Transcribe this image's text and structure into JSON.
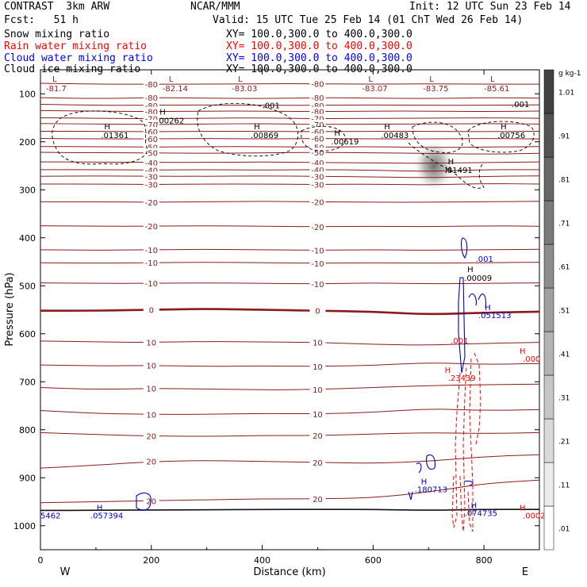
{
  "header": {
    "model": "CONTRAST  3km ARW",
    "org": "NCAR/MMM",
    "init": "Init: 12 UTC Sun 23 Feb 14",
    "fcst": "Fcst:   51 h",
    "valid": "Valid: 15 UTC Tue 25 Feb 14 (01 ChT Wed 26 Feb 14)",
    "fields": [
      {
        "name": "Snow mixing ratio",
        "xy": "XY= 100.0,300.0 to 400.0,300.0",
        "color": "#000000"
      },
      {
        "name": "Rain water mixing ratio",
        "xy": "XY= 100.0,300.0 to 400.0,300.0",
        "color": "#ff0000"
      },
      {
        "name": "Cloud water mixing ratio",
        "xy": "XY= 100.0,300.0 to 400.0,300.0",
        "color": "#0000ff"
      },
      {
        "name": "Cloud ice mixing ratio",
        "xy": "XY= 100.0,300.0 to 400.0,300.0",
        "color": "#000000"
      }
    ]
  },
  "chart_data": {
    "type": "contour",
    "xlabel": "Distance (km)",
    "ylabel": "Pressure (hPa)",
    "xlim": [
      0,
      900
    ],
    "ylim": [
      1050,
      50
    ],
    "x_ticks": [
      0,
      200,
      400,
      600,
      800
    ],
    "y_ticks": [
      100,
      200,
      300,
      400,
      500,
      600,
      700,
      800,
      900,
      1000
    ],
    "x_end_labels": {
      "left": "W",
      "right": "E"
    },
    "temperature_isotherms": [
      {
        "label": "-80",
        "p": [
          78,
          80,
          80,
          80,
          79,
          79,
          80,
          79,
          80,
          80
        ]
      },
      {
        "label": "-80",
        "p": [
          108,
          110,
          108,
          109,
          110,
          108,
          109,
          110,
          108,
          109
        ]
      },
      {
        "label": "-80",
        "p": [
          122,
          124,
          124,
          123,
          124,
          124,
          123,
          124,
          124,
          123
        ]
      },
      {
        "label": "-80",
        "p": [
          135,
          136,
          137,
          136,
          136,
          137,
          136,
          136,
          137,
          136
        ]
      },
      {
        "label": "-70",
        "p": [
          150,
          151,
          152,
          151,
          150,
          152,
          151,
          151,
          150,
          151
        ]
      },
      {
        "label": "-70",
        "p": [
          162,
          163,
          164,
          163,
          162,
          164,
          163,
          163,
          162,
          163
        ]
      },
      {
        "label": "-60",
        "p": [
          178,
          178,
          179,
          178,
          178,
          179,
          178,
          178,
          179,
          178
        ]
      },
      {
        "label": "-60",
        "p": [
          193,
          194,
          194,
          193,
          194,
          193,
          194,
          194,
          193,
          194
        ]
      },
      {
        "label": "-50",
        "p": [
          210,
          210,
          211,
          210,
          210,
          211,
          210,
          212,
          211,
          210
        ]
      },
      {
        "label": "-50",
        "p": [
          222,
          223,
          223,
          224,
          223,
          222,
          223,
          224,
          226,
          224
        ]
      },
      {
        "label": "-40",
        "p": [
          242,
          242,
          243,
          243,
          242,
          243,
          244,
          245,
          243,
          242
        ]
      },
      {
        "label": "-40",
        "p": [
          258,
          258,
          259,
          258,
          259,
          258,
          259,
          262,
          258,
          258
        ]
      },
      {
        "label": "-30",
        "p": [
          272,
          271,
          272,
          272,
          271,
          272,
          273,
          275,
          272,
          271
        ]
      },
      {
        "label": "-30",
        "p": [
          288,
          288,
          289,
          288,
          288,
          289,
          288,
          290,
          287,
          288
        ]
      },
      {
        "label": "-20",
        "p": [
          325,
          325,
          326,
          325,
          324,
          325,
          326,
          326,
          325,
          324
        ]
      },
      {
        "label": "-20",
        "p": [
          375,
          376,
          376,
          375,
          376,
          377,
          376,
          377,
          375,
          376
        ]
      },
      {
        "label": "-10",
        "p": [
          425,
          426,
          425,
          424,
          425,
          426,
          425,
          426,
          425,
          424
        ]
      },
      {
        "label": "-10",
        "p": [
          452,
          453,
          452,
          451,
          452,
          453,
          452,
          453,
          452,
          451
        ]
      },
      {
        "label": "-10",
        "p": [
          494,
          495,
          495,
          494,
          495,
          496,
          494,
          496,
          495,
          494
        ]
      },
      {
        "label": "0",
        "p": [
          552,
          552,
          550,
          548,
          550,
          552,
          554,
          560,
          556,
          554
        ]
      },
      {
        "label": "10",
        "p": [
          615,
          617,
          618,
          616,
          617,
          618,
          622,
          624,
          620,
          618
        ]
      },
      {
        "label": "10",
        "p": [
          665,
          667,
          666,
          668,
          667,
          668,
          666,
          660,
          664,
          662
        ]
      },
      {
        "label": "10",
        "p": [
          712,
          716,
          714,
          715,
          717,
          716,
          712,
          708,
          706,
          705
        ]
      },
      {
        "label": "10",
        "p": [
          760,
          766,
          768,
          768,
          766,
          767,
          764,
          756,
          760,
          758
        ]
      },
      {
        "label": "20",
        "p": [
          806,
          810,
          813,
          814,
          812,
          812,
          809,
          806,
          808,
          806
        ]
      },
      {
        "label": "20",
        "p": [
          880,
          874,
          866,
          864,
          866,
          868,
          870,
          866,
          856,
          852
        ]
      },
      {
        "label": "20",
        "p": [
          952,
          950,
          948,
          946,
          944,
          944,
          942,
          930,
          912,
          905
        ]
      },
      {
        "label": "",
        "p": [
          968,
          968,
          967,
          967,
          966,
          966,
          966,
          968,
          966,
          966
        ]
      }
    ],
    "temperature_extrema": [
      {
        "x": 10,
        "p": 85,
        "mark": "L",
        "value": "-81.7"
      },
      {
        "x": 220,
        "p": 85,
        "mark": "L",
        "value": "-82.14"
      },
      {
        "x": 345,
        "p": 85,
        "mark": "L",
        "value": "-83.03"
      },
      {
        "x": 580,
        "p": 85,
        "mark": "L",
        "value": "-83.07"
      },
      {
        "x": 690,
        "p": 85,
        "mark": "L",
        "value": "-83.75"
      },
      {
        "x": 800,
        "p": 85,
        "mark": "L",
        "value": "-85.61"
      }
    ],
    "ice_maxima": [
      {
        "x": 115,
        "p": 187,
        "value": ".01361"
      },
      {
        "x": 215,
        "p": 157,
        "value": ".00262"
      },
      {
        "x": 385,
        "p": 187,
        "value": ".00869"
      },
      {
        "x": 530,
        "p": 200,
        "value": ".00619"
      },
      {
        "x": 620,
        "p": 187,
        "value": ".00483"
      },
      {
        "x": 735,
        "p": 260,
        "value": ".01491"
      },
      {
        "x": 830,
        "p": 187,
        "value": ".00756"
      },
      {
        "x": 770,
        "p": 485,
        "value": ".00009"
      }
    ],
    "contour_labels": [
      {
        "x": 400,
        "p": 130,
        "text": ".001",
        "color": "#000000"
      },
      {
        "x": 850,
        "p": 128,
        "text": ".001",
        "color": "#000000"
      },
      {
        "x": 785,
        "p": 450,
        "text": ".001",
        "color": "#0000ff"
      },
      {
        "x": 740,
        "p": 620,
        "text": ".001",
        "color": "#ff0000"
      }
    ],
    "cloud_water_maxima": [
      {
        "x": 90,
        "p": 985,
        "value": ".057394"
      },
      {
        "x": 675,
        "p": 930,
        "value": ".180713"
      },
      {
        "x": 790,
        "p": 567,
        "value": ".051513"
      },
      {
        "x": 765,
        "p": 980,
        "value": ".074735"
      },
      {
        "x": 0,
        "p": 985,
        "value": "5462"
      }
    ],
    "rain_maxima": [
      {
        "x": 735,
        "p": 698,
        "value": ".23439"
      },
      {
        "x": 870,
        "p": 658,
        "value": ".000"
      },
      {
        "x": 870,
        "p": 985,
        "value": ".0002"
      }
    ],
    "snow_shading": {
      "x": 710,
      "p": 250,
      "label_mark": "H"
    },
    "colorbar": {
      "unit": "g kg-1",
      "levels": [
        ".01",
        ".11",
        ".21",
        ".31",
        ".41",
        ".51",
        ".61",
        ".71",
        ".81",
        ".91",
        "1.01"
      ]
    }
  }
}
